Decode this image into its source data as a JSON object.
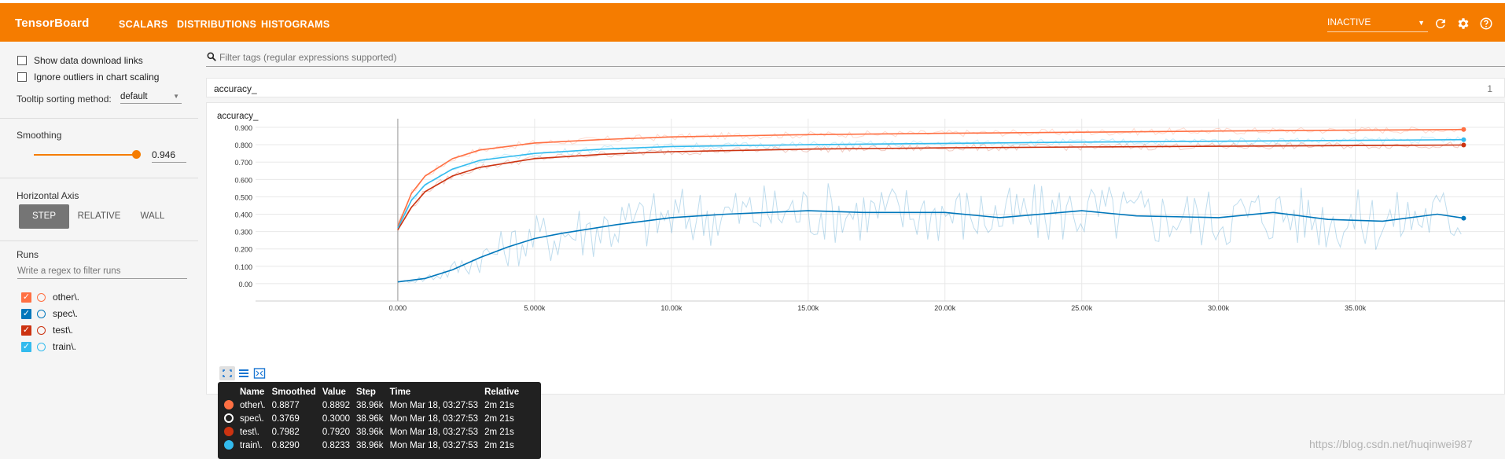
{
  "header": {
    "brand": "TensorBoard",
    "tabs": [
      {
        "label": "SCALARS",
        "active": true
      },
      {
        "label": "DISTRIBUTIONS",
        "active": false
      },
      {
        "label": "HISTOGRAMS",
        "active": false
      }
    ],
    "status_select": "INACTIVE",
    "icons": [
      "refresh-icon",
      "gear-icon",
      "help-icon"
    ]
  },
  "sidebar": {
    "show_download_links": "Show data download links",
    "ignore_outliers": "Ignore outliers in chart scaling",
    "tooltip_sorting_label": "Tooltip sorting method:",
    "tooltip_sorting_value": "default",
    "smoothing_label": "Smoothing",
    "smoothing_value": "0.946",
    "horizontal_axis_label": "Horizontal Axis",
    "axis_buttons": [
      "STEP",
      "RELATIVE",
      "WALL"
    ],
    "axis_selected": "STEP",
    "runs_label": "Runs",
    "runs_filter_placeholder": "Write a regex to filter runs",
    "runs": [
      {
        "name": "other\\.",
        "color": "#ff7043",
        "checked": true
      },
      {
        "name": "spec\\.",
        "color": "#0077bb",
        "checked": true
      },
      {
        "name": "test\\.",
        "color": "#cc3311",
        "checked": true
      },
      {
        "name": "train\\.",
        "color": "#33bbee",
        "checked": true
      }
    ]
  },
  "filter_tags_placeholder": "Filter tags (regular expressions supported)",
  "card": {
    "header_title": "accuracy_",
    "header_count": "1",
    "chart_title": "accuracy_"
  },
  "chart_data": {
    "type": "line",
    "title": "accuracy_",
    "xlabel": "",
    "ylabel": "",
    "xlim": [
      -5200,
      40500
    ],
    "ylim": [
      -0.1,
      0.95
    ],
    "x_ticks": [
      "0.000",
      "5.000k",
      "10.00k",
      "15.00k",
      "20.00k",
      "25.00k",
      "30.00k",
      "35.00k"
    ],
    "y_ticks": [
      "0.00",
      "0.100",
      "0.200",
      "0.300",
      "0.400",
      "0.500",
      "0.600",
      "0.700",
      "0.800",
      "0.900"
    ],
    "grid": true,
    "series": [
      {
        "name": "other\\.",
        "color": "#ff7043",
        "x": [
          0,
          500,
          1000,
          2000,
          3000,
          5000,
          7500,
          10000,
          15000,
          20000,
          25000,
          30000,
          35000,
          38960
        ],
        "y": [
          0.33,
          0.52,
          0.62,
          0.72,
          0.77,
          0.81,
          0.83,
          0.845,
          0.858,
          0.866,
          0.872,
          0.879,
          0.884,
          0.8877
        ]
      },
      {
        "name": "spec\\.",
        "color": "#0077bb",
        "x": [
          0,
          1000,
          2000,
          3000,
          4000,
          5000,
          6000,
          8000,
          10000,
          12000,
          15000,
          17000,
          20000,
          22000,
          25000,
          27000,
          30000,
          32000,
          34000,
          36000,
          38000,
          38960
        ],
        "y": [
          0.01,
          0.03,
          0.08,
          0.15,
          0.21,
          0.26,
          0.29,
          0.34,
          0.38,
          0.4,
          0.42,
          0.41,
          0.41,
          0.38,
          0.42,
          0.39,
          0.38,
          0.41,
          0.37,
          0.36,
          0.4,
          0.3769
        ]
      },
      {
        "name": "test\\.",
        "color": "#cc3311",
        "x": [
          0,
          500,
          1000,
          2000,
          3000,
          5000,
          7500,
          10000,
          15000,
          20000,
          25000,
          30000,
          35000,
          38960
        ],
        "y": [
          0.31,
          0.44,
          0.53,
          0.62,
          0.67,
          0.72,
          0.745,
          0.76,
          0.775,
          0.782,
          0.787,
          0.791,
          0.795,
          0.7982
        ]
      },
      {
        "name": "train\\.",
        "color": "#33bbee",
        "x": [
          0,
          500,
          1000,
          2000,
          3000,
          5000,
          7500,
          10000,
          15000,
          20000,
          25000,
          30000,
          35000,
          38960
        ],
        "y": [
          0.32,
          0.48,
          0.57,
          0.66,
          0.71,
          0.75,
          0.775,
          0.79,
          0.8,
          0.808,
          0.815,
          0.82,
          0.825,
          0.829
        ]
      }
    ]
  },
  "tooltip": {
    "headers": [
      "Name",
      "Smoothed",
      "Value",
      "Step",
      "Time",
      "Relative"
    ],
    "rows": [
      {
        "name": "other\\.",
        "smoothed": "0.8877",
        "value": "0.8892",
        "step": "38.96k",
        "time": "Mon Mar 18, 03:27:53",
        "relative": "2m 21s",
        "color": "#ff7043",
        "hollow": false
      },
      {
        "name": "spec\\.",
        "smoothed": "0.3769",
        "value": "0.3000",
        "step": "38.96k",
        "time": "Mon Mar 18, 03:27:53",
        "relative": "2m 21s",
        "color": "#0077bb",
        "hollow": true
      },
      {
        "name": "test\\.",
        "smoothed": "0.7982",
        "value": "0.7920",
        "step": "38.96k",
        "time": "Mon Mar 18, 03:27:53",
        "relative": "2m 21s",
        "color": "#cc3311",
        "hollow": false
      },
      {
        "name": "train\\.",
        "smoothed": "0.8290",
        "value": "0.8233",
        "step": "38.96k",
        "time": "Mon Mar 18, 03:27:53",
        "relative": "2m 21s",
        "color": "#33bbee",
        "hollow": false
      }
    ]
  },
  "watermark": "https://blog.csdn.net/huqinwei987"
}
